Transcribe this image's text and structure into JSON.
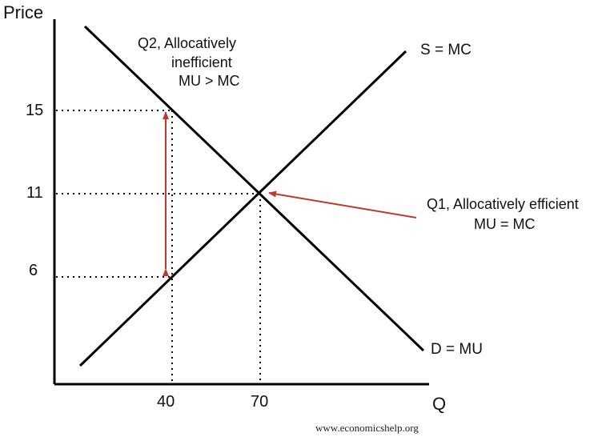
{
  "axes": {
    "y_title": "Price",
    "x_title": "Q",
    "y_ticks": [
      "15",
      "11",
      "6"
    ],
    "x_ticks": [
      "40",
      "70"
    ]
  },
  "curves": {
    "supply_label": "S = MC",
    "demand_label": "D = MU"
  },
  "annotations": {
    "q2_line1": "Q2, Allocatively",
    "q2_line2": "inefficient",
    "q2_line3": "MU > MC",
    "q1_line1": "Q1, Allocatively efficient",
    "q1_line2": "MU = MC"
  },
  "colors": {
    "axis": "#000000",
    "curve": "#000000",
    "guide": "#000000",
    "arrow": "#c0392b"
  },
  "footer": {
    "watermark": "www.economicshelp.org"
  }
}
